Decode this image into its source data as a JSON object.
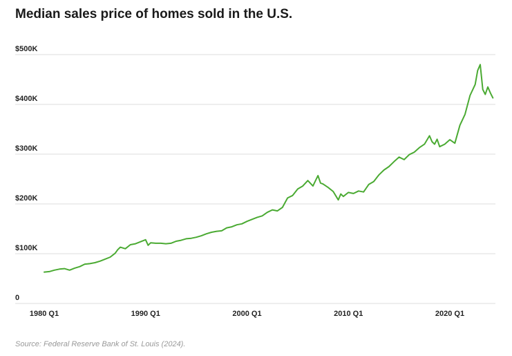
{
  "title": "Median sales price of homes sold in the U.S.",
  "source": "Source: Federal Reserve Bank of St. Louis (2024).",
  "chart_data": {
    "type": "line",
    "title": "Median sales price of homes sold in the U.S.",
    "xlabel": "",
    "ylabel": "",
    "ylim": [
      0,
      500000
    ],
    "xlim": [
      1980.0,
      2024.5
    ],
    "y_ticks": [
      {
        "value": 0,
        "label": "0"
      },
      {
        "value": 100000,
        "label": "$100K"
      },
      {
        "value": 200000,
        "label": "$200K"
      },
      {
        "value": 300000,
        "label": "$300K"
      },
      {
        "value": 400000,
        "label": "$400K"
      },
      {
        "value": 500000,
        "label": "$500K"
      }
    ],
    "x_ticks": [
      {
        "value": 1980.0,
        "label": "1980 Q1"
      },
      {
        "value": 1990.0,
        "label": "1990 Q1"
      },
      {
        "value": 2000.0,
        "label": "2000 Q1"
      },
      {
        "value": 2010.0,
        "label": "2010 Q1"
      },
      {
        "value": 2020.0,
        "label": "2020 Q1"
      }
    ],
    "grid": "horizontal",
    "color": "#4aaa32",
    "series": [
      {
        "x": [
          1980.0,
          1980.5,
          1981.0,
          1981.5,
          1982.0,
          1982.5,
          1983.0,
          1983.5,
          1984.0,
          1984.5,
          1985.0,
          1985.5,
          1986.0,
          1986.5,
          1987.0,
          1987.25,
          1987.5,
          1988.0,
          1988.5,
          1989.0,
          1989.5,
          1990.0,
          1990.25,
          1990.5,
          1991.0,
          1991.5,
          1992.0,
          1992.5,
          1993.0,
          1993.5,
          1994.0,
          1994.5,
          1995.0,
          1995.5,
          1996.0,
          1996.5,
          1997.0,
          1997.5,
          1998.0,
          1998.5,
          1999.0,
          1999.5,
          2000.0,
          2000.5,
          2001.0,
          2001.5,
          2002.0,
          2002.5,
          2003.0,
          2003.5,
          2004.0,
          2004.5,
          2005.0,
          2005.5,
          2006.0,
          2006.5,
          2007.0,
          2007.25,
          2007.5,
          2008.0,
          2008.5,
          2009.0,
          2009.25,
          2009.5,
          2010.0,
          2010.5,
          2011.0,
          2011.5,
          2012.0,
          2012.5,
          2013.0,
          2013.5,
          2014.0,
          2014.5,
          2015.0,
          2015.5,
          2016.0,
          2016.5,
          2017.0,
          2017.5,
          2018.0,
          2018.25,
          2018.5,
          2018.75,
          2019.0,
          2019.5,
          2020.0,
          2020.5,
          2021.0,
          2021.5,
          2022.0,
          2022.5,
          2022.75,
          2023.0,
          2023.25,
          2023.5,
          2023.75,
          2024.0,
          2024.25
        ],
        "values": [
          63000,
          64000,
          67000,
          69000,
          70000,
          67000,
          71000,
          74000,
          79000,
          80000,
          82000,
          85000,
          89000,
          93000,
          101000,
          108000,
          113000,
          110000,
          118000,
          120000,
          124000,
          128000,
          117000,
          122000,
          121000,
          121000,
          120000,
          121000,
          125000,
          127000,
          130000,
          131000,
          133000,
          136000,
          140000,
          143000,
          145000,
          146000,
          152000,
          154000,
          158000,
          160000,
          165000,
          169000,
          173000,
          176000,
          183000,
          188000,
          186000,
          193000,
          212000,
          217000,
          230000,
          236000,
          247000,
          236000,
          257000,
          242000,
          240000,
          233000,
          225000,
          208000,
          220000,
          215000,
          223000,
          221000,
          226000,
          224000,
          239000,
          245000,
          258000,
          268000,
          275000,
          285000,
          294000,
          289000,
          299000,
          304000,
          313000,
          320000,
          337000,
          325000,
          320000,
          330000,
          315000,
          320000,
          329000,
          322000,
          358000,
          380000,
          418000,
          440000,
          468000,
          480000,
          430000,
          420000,
          435000,
          423000,
          413000
        ]
      }
    ]
  }
}
